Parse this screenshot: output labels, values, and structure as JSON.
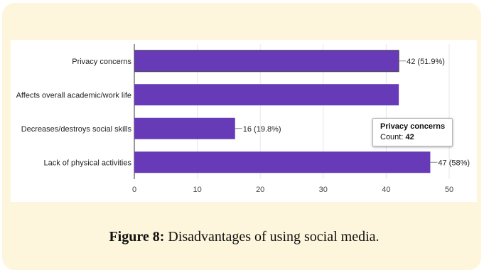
{
  "chart_data": {
    "type": "bar",
    "orientation": "horizontal",
    "categories": [
      "Privacy concerns",
      "Affects overall academic/work life",
      "Decreases/destroys social skills",
      "Lack of physical activities"
    ],
    "values": [
      42,
      42,
      16,
      47
    ],
    "data_labels": [
      "42 (51.9%)",
      "",
      "16 (19.8%)",
      "47 (58%)"
    ],
    "xticks": [
      0,
      10,
      20,
      30,
      40,
      50
    ],
    "xlim": [
      0,
      50
    ],
    "grid": true,
    "bar_color": "#673ab7",
    "tooltip": {
      "title": "Privacy concerns",
      "count_label": "Count:",
      "count_value": "42"
    }
  },
  "caption": {
    "label": "Figure 8:",
    "text": " Disadvantages of using social media."
  },
  "colors": {
    "panel_background": "#fdf6dc",
    "bar": "#673ab7"
  }
}
